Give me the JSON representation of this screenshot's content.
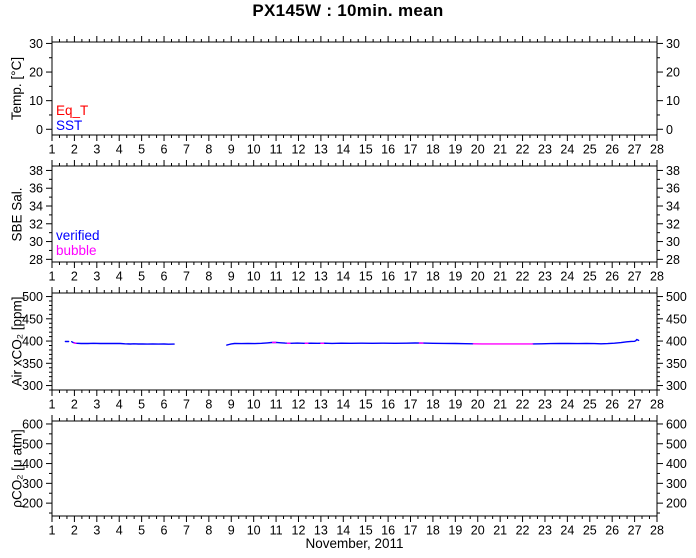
{
  "title": "PX145W : 10min. mean",
  "x_axis": {
    "lim": [
      1,
      28
    ],
    "ticks": [
      1,
      2,
      3,
      4,
      5,
      6,
      7,
      8,
      9,
      10,
      11,
      12,
      13,
      14,
      15,
      16,
      17,
      18,
      19,
      20,
      21,
      22,
      23,
      24,
      25,
      26,
      27,
      28
    ],
    "minor_interval": 0.3333,
    "label": "November, 2011"
  },
  "colors": {
    "axis": "#000000",
    "background": "#ffffff",
    "eq_t": "#ff0000",
    "sst": "#0000ff",
    "verified": "#0000ff",
    "bubble": "#ff00ff"
  },
  "chart_data": [
    {
      "type": "line",
      "panel": "temperature",
      "ylabel": "Temp. [°C]",
      "ylim": [
        -2,
        30.5
      ],
      "yticks": [
        0,
        10,
        20,
        30
      ],
      "yminor": 5,
      "legend": [
        {
          "label": "Eq_T",
          "color": "#ff0000"
        },
        {
          "label": "SST",
          "color": "#0000ff"
        }
      ],
      "series": []
    },
    {
      "type": "line",
      "panel": "salinity",
      "ylabel": "SBE Sal.",
      "ylim": [
        27.7,
        38.5
      ],
      "yticks": [
        28,
        30,
        32,
        34,
        36,
        38
      ],
      "yminor": 1,
      "legend": [
        {
          "label": "verified",
          "color": "#0000ff"
        },
        {
          "label": "bubble",
          "color": "#ff00ff"
        }
      ],
      "series": []
    },
    {
      "type": "line",
      "panel": "air-xco2",
      "ylabel": "Air xCO₂ [ppm]",
      "ylim": [
        290,
        508
      ],
      "yticks": [
        300,
        350,
        400,
        450,
        500
      ],
      "yminor": 10,
      "legend": [],
      "series": [
        {
          "name": "verified",
          "color": "#0000ff",
          "segments": [
            [
              [
                1.6,
                399
              ],
              [
                1.74,
                399
              ]
            ],
            [
              [
                1.88,
                398.5
              ],
              [
                1.95,
                396.5
              ],
              [
                2.05,
                395.2
              ],
              [
                2.3,
                394.6
              ],
              [
                2.6,
                394.6
              ],
              [
                2.85,
                394.9
              ],
              [
                3.15,
                394.4
              ],
              [
                3.45,
                394.8
              ],
              [
                3.75,
                394.4
              ],
              [
                4.05,
                394.4
              ],
              [
                4.25,
                393.9
              ],
              [
                4.5,
                393.4
              ],
              [
                4.65,
                393.9
              ],
              [
                4.85,
                393.4
              ],
              [
                5.05,
                393.7
              ],
              [
                5.25,
                393.2
              ],
              [
                5.5,
                393.6
              ],
              [
                5.75,
                393.1
              ],
              [
                6.0,
                393.4
              ],
              [
                6.2,
                393.0
              ],
              [
                6.45,
                393.2
              ]
            ],
            [
              [
                8.8,
                391.0
              ],
              [
                8.9,
                392.2
              ],
              [
                9.0,
                393.6
              ],
              [
                9.15,
                394.5
              ],
              [
                9.45,
                394.2
              ],
              [
                9.75,
                394.6
              ],
              [
                10.05,
                394.3
              ],
              [
                10.35,
                394.9
              ],
              [
                10.6,
                395.8
              ],
              [
                10.8,
                396.8
              ],
              [
                11.0,
                396.9
              ],
              [
                11.2,
                396.1
              ],
              [
                11.4,
                395.4
              ],
              [
                11.65,
                395.0
              ],
              [
                11.95,
                395.3
              ],
              [
                12.25,
                394.9
              ],
              [
                12.55,
                395.2
              ],
              [
                12.85,
                394.9
              ],
              [
                13.15,
                395.1
              ],
              [
                13.5,
                394.8
              ],
              [
                13.9,
                395.2
              ],
              [
                14.35,
                395.0
              ],
              [
                14.8,
                395.1
              ],
              [
                15.3,
                395.0
              ],
              [
                15.8,
                395.1
              ],
              [
                16.3,
                395.0
              ],
              [
                16.8,
                395.2
              ],
              [
                17.2,
                395.6
              ],
              [
                17.55,
                395.3
              ],
              [
                18.0,
                395.0
              ],
              [
                18.5,
                394.7
              ],
              [
                19.0,
                394.4
              ],
              [
                19.45,
                394.1
              ],
              [
                19.8,
                393.8
              ]
            ],
            [
              [
                22.45,
                393.7
              ],
              [
                22.85,
                393.9
              ],
              [
                23.25,
                394.2
              ],
              [
                23.65,
                394.4
              ],
              [
                24.05,
                394.5
              ],
              [
                24.45,
                394.3
              ],
              [
                24.85,
                394.5
              ],
              [
                25.2,
                394.2
              ],
              [
                25.5,
                393.9
              ],
              [
                25.8,
                394.3
              ],
              [
                26.1,
                395.2
              ],
              [
                26.4,
                396.6
              ],
              [
                26.65,
                398.3
              ],
              [
                26.85,
                399.3
              ],
              [
                27.0,
                399.5
              ],
              [
                27.05,
                400.6
              ],
              [
                27.1,
                403.5
              ],
              [
                27.18,
                401.5
              ]
            ]
          ]
        },
        {
          "name": "bubble",
          "color": "#ff00ff",
          "segments": [
            [
              [
                1.98,
                395.8
              ],
              [
                2.06,
                395.2
              ]
            ],
            [
              [
                10.85,
                396.8
              ],
              [
                10.98,
                396.9
              ]
            ],
            [
              [
                11.5,
                395.15
              ],
              [
                11.62,
                395.05
              ]
            ],
            [
              [
                12.3,
                394.9
              ],
              [
                12.42,
                394.9
              ]
            ],
            [
              [
                13.0,
                395.0
              ],
              [
                13.12,
                395.05
              ]
            ],
            [
              [
                17.4,
                395.45
              ],
              [
                17.55,
                395.35
              ]
            ],
            [
              [
                19.8,
                393.8
              ],
              [
                20.2,
                393.6
              ],
              [
                20.6,
                393.5
              ],
              [
                21.0,
                393.6
              ],
              [
                21.4,
                393.5
              ],
              [
                21.8,
                393.5
              ],
              [
                22.2,
                393.6
              ],
              [
                22.45,
                393.7
              ]
            ]
          ]
        }
      ]
    },
    {
      "type": "line",
      "panel": "pco2",
      "ylabel": "ρCO₂ [μ atm]",
      "ylim": [
        135,
        615
      ],
      "yticks": [
        200,
        300,
        400,
        500,
        600
      ],
      "yminor": 50,
      "legend": [],
      "series": []
    }
  ]
}
